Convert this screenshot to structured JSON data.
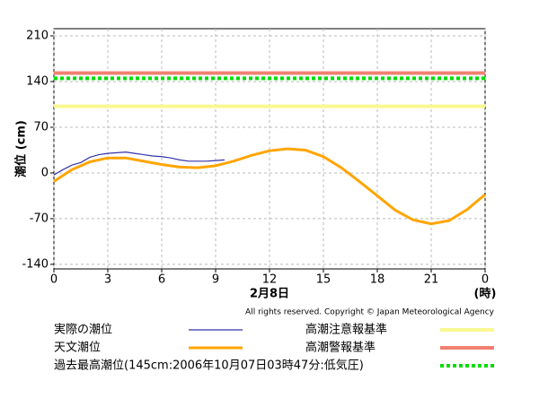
{
  "chart_data": {
    "type": "line",
    "y_label": "潮位 (cm)",
    "x_label": "2月8日",
    "x_unit": "(時)",
    "copyright": "All rights reserved. Copyright © Japan Meteorological Agency",
    "xlim": [
      0,
      24
    ],
    "xticks": [
      0,
      3,
      6,
      9,
      12,
      15,
      18,
      21,
      {
        "value": 24,
        "label": "0"
      }
    ],
    "ylim": [
      -147,
      221
    ],
    "yticks": [
      210,
      140,
      70,
      0,
      -70,
      -140
    ],
    "grid": true,
    "series": [
      {
        "name": "実際の潮位",
        "color": "#3333aa",
        "width": 1.2,
        "x": [
          0,
          0.5,
          1,
          1.5,
          2,
          2.5,
          3,
          3.5,
          4,
          4.5,
          5,
          5.5,
          6,
          6.5,
          7,
          7.5,
          8,
          8.5,
          9,
          9.5
        ],
        "values": [
          -3,
          5,
          12,
          16,
          24,
          28,
          30,
          31,
          32,
          30,
          28,
          26,
          25,
          23,
          20,
          18,
          18,
          18,
          19,
          20
        ]
      },
      {
        "name": "天文潮位",
        "color": "#ffa500",
        "width": 3,
        "x": [
          0,
          1,
          2,
          3,
          4,
          5,
          6,
          7,
          8,
          9,
          10,
          11,
          12,
          13,
          14,
          15,
          16,
          17,
          18,
          19,
          20,
          21,
          22,
          23,
          24
        ],
        "values": [
          -13,
          5,
          17,
          23,
          23,
          18,
          13,
          9,
          8,
          11,
          18,
          27,
          34,
          37,
          35,
          25,
          8,
          -13,
          -35,
          -57,
          -72,
          -78,
          -73,
          -56,
          -33
        ]
      }
    ],
    "reference_lines": [
      {
        "name": "高潮注意報基準",
        "value": 102,
        "color": "#f8f890",
        "dashed": false
      },
      {
        "name": "高潮警報基準",
        "value": 153,
        "color": "#f08070",
        "dashed": false
      },
      {
        "name": "過去最高潮位(145cm:2006年10月07日03時47分:低気圧)",
        "value": 145,
        "color": "#00dd00",
        "dashed": true
      }
    ]
  }
}
